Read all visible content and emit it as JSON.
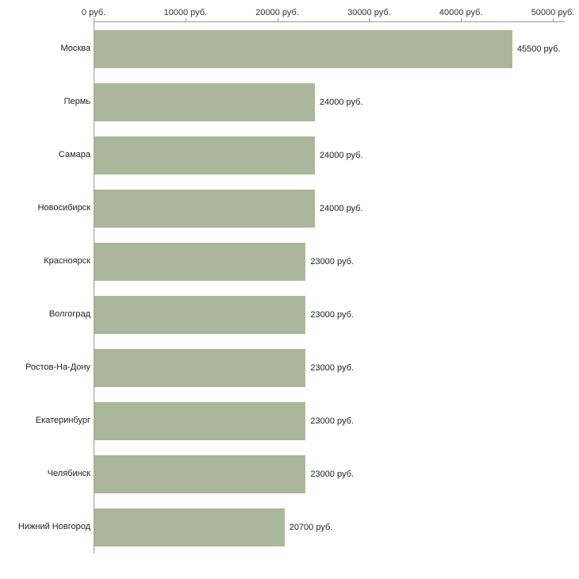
{
  "chart_data": {
    "type": "bar",
    "orientation": "horizontal",
    "title": "",
    "xlabel": "",
    "ylabel": "",
    "xlim": [
      0,
      50000
    ],
    "xmax": 50000,
    "grid": false,
    "legend": false,
    "bar_color": "#aab79a",
    "axis_color": "#9a9a9a",
    "categories": [
      "Москва",
      "Пермь",
      "Самара",
      "Новосибирск",
      "Красноярск",
      "Волгоград",
      "Ростов-На-Дону",
      "Екатеринбург",
      "Челябинск",
      "Нижний Новгород"
    ],
    "values": [
      45500,
      24000,
      24000,
      24000,
      23000,
      23000,
      23000,
      23000,
      23000,
      20700
    ],
    "value_labels": [
      "45500 руб.",
      "24000 руб.",
      "24000 руб.",
      "24000 руб.",
      "23000 руб.",
      "23000 руб.",
      "23000 руб.",
      "23000 руб.",
      "23000 руб.",
      "20700 руб."
    ],
    "x_ticks": [
      {
        "value": 0,
        "label": "0 руб."
      },
      {
        "value": 10000,
        "label": "10000 руб."
      },
      {
        "value": 20000,
        "label": "20000 руб."
      },
      {
        "value": 30000,
        "label": "30000 руб."
      },
      {
        "value": 40000,
        "label": "40000 руб."
      },
      {
        "value": 50000,
        "label": "50000 руб."
      }
    ]
  }
}
